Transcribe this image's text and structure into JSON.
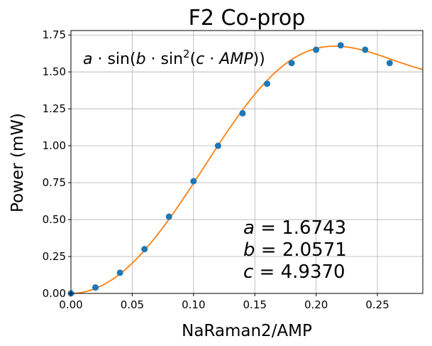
{
  "chart_data": {
    "type": "scatter",
    "title": "F2 Co-prop",
    "xlabel": "NaRaman2/AMP",
    "ylabel": "Power (mW)",
    "xlim": [
      0.0,
      0.287
    ],
    "ylim": [
      0.0,
      1.78
    ],
    "x_ticks": [
      "0.00",
      "0.05",
      "0.10",
      "0.15",
      "0.20",
      "0.25"
    ],
    "y_ticks": [
      "0.00",
      "0.25",
      "0.50",
      "0.75",
      "1.00",
      "1.25",
      "1.50",
      "1.75"
    ],
    "grid": true,
    "series": [
      {
        "kind": "points",
        "color": "#1f77b4",
        "x": [
          0.0,
          0.02,
          0.04,
          0.06,
          0.08,
          0.1,
          0.12,
          0.14,
          0.16,
          0.18,
          0.2,
          0.22,
          0.24,
          0.26
        ],
        "y": [
          0.0,
          0.04,
          0.14,
          0.3,
          0.52,
          0.76,
          1.0,
          1.22,
          1.42,
          1.56,
          1.65,
          1.68,
          1.65,
          1.56
        ]
      },
      {
        "kind": "fit",
        "color": "#ff7f0e",
        "model": "a*sin(b*sin^2(c*AMP))",
        "params": {
          "a": 1.6743,
          "b": 2.0571,
          "c": 4.937
        }
      }
    ],
    "formula": {
      "a": "a",
      "dot1": " · sin(",
      "b": "b",
      "dot2": " · sin",
      "sup": "2",
      "paren": "(",
      "c": "c",
      "dot3": " · ",
      "amp": "AMP",
      "close": "))"
    },
    "param_labels": [
      {
        "name": "a",
        "value": "1.6743"
      },
      {
        "name": "b",
        "value": "2.0571"
      },
      {
        "name": "c",
        "value": "4.9370"
      }
    ]
  }
}
